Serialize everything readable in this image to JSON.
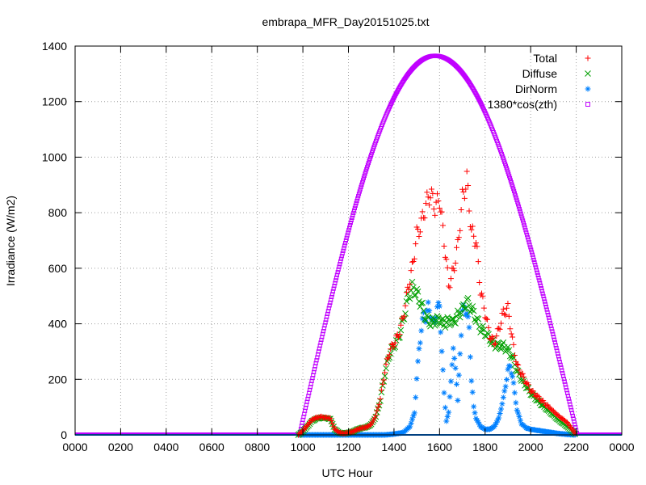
{
  "chart_data": {
    "type": "scatter",
    "title": "embrapa_MFR_Day20151025.txt",
    "xlabel": "UTC Hour",
    "ylabel": "Irradiance (W/m2)",
    "xlim": [
      0,
      24
    ],
    "ylim": [
      0,
      1400
    ],
    "xtick_labels": [
      "0000",
      "0200",
      "0400",
      "0600",
      "0800",
      "1000",
      "1200",
      "1400",
      "1600",
      "1800",
      "2000",
      "2200",
      "0000"
    ],
    "ytick_labels": [
      "0",
      "200",
      "400",
      "600",
      "800",
      "1000",
      "1200",
      "1400"
    ],
    "grid": true,
    "legend_position": "top-right",
    "series": [
      {
        "name": "Total",
        "marker": "plus",
        "color": "#ff0000",
        "points": [
          [
            9.8,
            0
          ],
          [
            10.0,
            15
          ],
          [
            10.2,
            35
          ],
          [
            10.4,
            55
          ],
          [
            10.6,
            62
          ],
          [
            10.8,
            65
          ],
          [
            11.0,
            62
          ],
          [
            11.2,
            60
          ],
          [
            11.4,
            20
          ],
          [
            11.6,
            8
          ],
          [
            11.8,
            5
          ],
          [
            12.0,
            8
          ],
          [
            12.2,
            12
          ],
          [
            12.4,
            20
          ],
          [
            12.6,
            25
          ],
          [
            12.8,
            28
          ],
          [
            13.0,
            38
          ],
          [
            13.2,
            70
          ],
          [
            13.4,
            130
          ],
          [
            13.6,
            230
          ],
          [
            13.8,
            300
          ],
          [
            14.0,
            330
          ],
          [
            14.2,
            360
          ],
          [
            14.4,
            420
          ],
          [
            14.6,
            520
          ],
          [
            14.8,
            600
          ],
          [
            15.0,
            720
          ],
          [
            15.2,
            760
          ],
          [
            15.4,
            830
          ],
          [
            15.6,
            870
          ],
          [
            15.8,
            820
          ],
          [
            16.0,
            850
          ],
          [
            16.2,
            700
          ],
          [
            16.4,
            540
          ],
          [
            16.6,
            590
          ],
          [
            16.8,
            680
          ],
          [
            17.0,
            850
          ],
          [
            17.2,
            920
          ],
          [
            17.4,
            730
          ],
          [
            17.6,
            700
          ],
          [
            17.8,
            520
          ],
          [
            18.0,
            440
          ],
          [
            18.2,
            360
          ],
          [
            18.4,
            330
          ],
          [
            18.6,
            380
          ],
          [
            18.8,
            440
          ],
          [
            19.0,
            455
          ],
          [
            19.2,
            340
          ],
          [
            19.4,
            250
          ],
          [
            19.6,
            220
          ],
          [
            19.8,
            190
          ],
          [
            20.0,
            160
          ],
          [
            20.4,
            130
          ],
          [
            20.8,
            100
          ],
          [
            21.2,
            70
          ],
          [
            21.6,
            45
          ],
          [
            22.0,
            0
          ]
        ]
      },
      {
        "name": "Diffuse",
        "marker": "cross",
        "color": "#00a000",
        "points": [
          [
            9.8,
            0
          ],
          [
            10.0,
            12
          ],
          [
            10.2,
            30
          ],
          [
            10.4,
            50
          ],
          [
            10.6,
            58
          ],
          [
            10.8,
            62
          ],
          [
            11.0,
            60
          ],
          [
            11.2,
            58
          ],
          [
            11.4,
            20
          ],
          [
            11.6,
            8
          ],
          [
            11.8,
            5
          ],
          [
            12.0,
            8
          ],
          [
            12.2,
            12
          ],
          [
            12.4,
            20
          ],
          [
            12.6,
            25
          ],
          [
            12.8,
            28
          ],
          [
            13.0,
            38
          ],
          [
            13.2,
            65
          ],
          [
            13.4,
            125
          ],
          [
            13.6,
            220
          ],
          [
            13.8,
            290
          ],
          [
            14.0,
            320
          ],
          [
            14.2,
            350
          ],
          [
            14.4,
            410
          ],
          [
            14.6,
            490
          ],
          [
            14.8,
            530
          ],
          [
            15.0,
            510
          ],
          [
            15.2,
            470
          ],
          [
            15.4,
            420
          ],
          [
            15.6,
            405
          ],
          [
            15.8,
            410
          ],
          [
            16.0,
            415
          ],
          [
            16.2,
            400
          ],
          [
            16.4,
            410
          ],
          [
            16.6,
            405
          ],
          [
            16.8,
            430
          ],
          [
            17.0,
            450
          ],
          [
            17.2,
            480
          ],
          [
            17.4,
            455
          ],
          [
            17.6,
            420
          ],
          [
            17.8,
            385
          ],
          [
            18.0,
            370
          ],
          [
            18.2,
            345
          ],
          [
            18.4,
            325
          ],
          [
            18.6,
            320
          ],
          [
            18.8,
            320
          ],
          [
            19.0,
            305
          ],
          [
            19.2,
            280
          ],
          [
            19.4,
            230
          ],
          [
            19.6,
            200
          ],
          [
            19.8,
            175
          ],
          [
            20.0,
            150
          ],
          [
            20.4,
            115
          ],
          [
            20.8,
            85
          ],
          [
            21.2,
            55
          ],
          [
            21.6,
            30
          ],
          [
            22.0,
            0
          ]
        ]
      },
      {
        "name": "DirNorm",
        "marker": "star",
        "color": "#0080ff",
        "points": [
          [
            0,
            0
          ],
          [
            9.8,
            0
          ],
          [
            12.0,
            0
          ],
          [
            13.6,
            0
          ],
          [
            14.0,
            3
          ],
          [
            14.4,
            8
          ],
          [
            14.7,
            30
          ],
          [
            14.9,
            80
          ],
          [
            15.0,
            200
          ],
          [
            15.1,
            310
          ],
          [
            15.2,
            380
          ],
          [
            15.3,
            430
          ],
          [
            15.4,
            420
          ],
          [
            15.5,
            460
          ],
          [
            15.6,
            440
          ],
          [
            15.7,
            400
          ],
          [
            15.8,
            420
          ],
          [
            15.9,
            450
          ],
          [
            16.0,
            470
          ],
          [
            16.1,
            300
          ],
          [
            16.2,
            150
          ],
          [
            16.3,
            50
          ],
          [
            16.4,
            80
          ],
          [
            16.5,
            200
          ],
          [
            16.6,
            300
          ],
          [
            16.7,
            250
          ],
          [
            16.8,
            120
          ],
          [
            16.9,
            300
          ],
          [
            17.0,
            440
          ],
          [
            17.1,
            460
          ],
          [
            17.2,
            440
          ],
          [
            17.3,
            380
          ],
          [
            17.4,
            200
          ],
          [
            17.5,
            100
          ],
          [
            17.6,
            60
          ],
          [
            17.8,
            30
          ],
          [
            18.0,
            20
          ],
          [
            18.2,
            20
          ],
          [
            18.4,
            30
          ],
          [
            18.6,
            60
          ],
          [
            18.8,
            130
          ],
          [
            19.0,
            230
          ],
          [
            19.1,
            250
          ],
          [
            19.2,
            210
          ],
          [
            19.4,
            90
          ],
          [
            19.6,
            40
          ],
          [
            19.8,
            25
          ],
          [
            20.0,
            20
          ],
          [
            20.4,
            15
          ],
          [
            20.8,
            10
          ],
          [
            21.2,
            5
          ],
          [
            21.6,
            2
          ],
          [
            22.0,
            0
          ],
          [
            24,
            0
          ]
        ]
      },
      {
        "name": "1380*cos(zth)",
        "marker": "square",
        "color": "#c000ff",
        "points": []
      }
    ]
  }
}
